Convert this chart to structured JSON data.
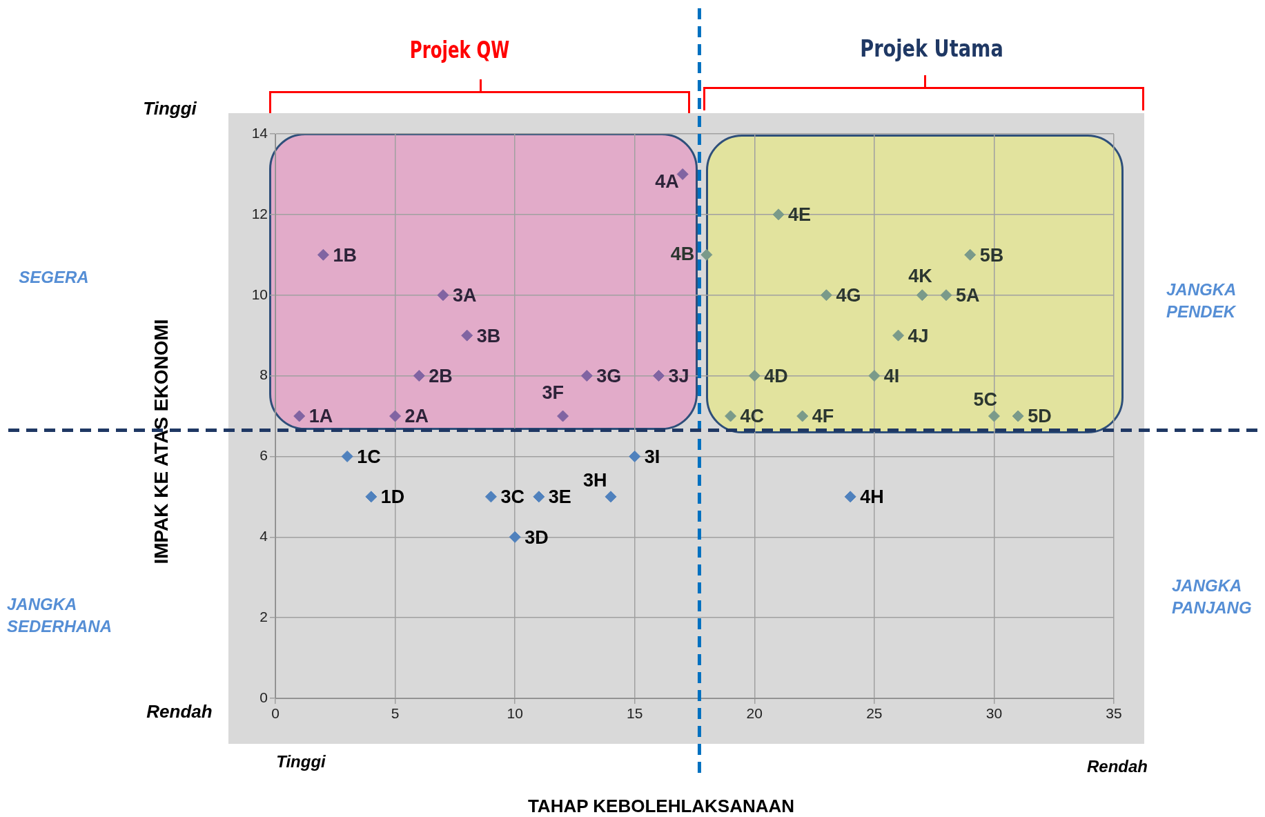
{
  "chart_data": {
    "type": "scatter",
    "xlabel": "TAHAP KEBOLEHLAKSANAAN",
    "ylabel": "IMPAK KE ATAS EKONOMI",
    "xlim": [
      0,
      35
    ],
    "xticks": [
      0,
      5,
      10,
      15,
      20,
      25,
      30,
      35
    ],
    "ylim": [
      0,
      14
    ],
    "yticks": [
      0,
      2,
      4,
      6,
      8,
      10,
      12,
      14
    ],
    "grid": true,
    "legend": false,
    "marker": "diamond",
    "series": [
      {
        "color": "#8064a2",
        "x": [
          1,
          2,
          5,
          6,
          7,
          8,
          12,
          13,
          16,
          17
        ],
        "values": [
          7,
          11,
          7,
          8,
          10,
          9,
          7,
          8,
          8,
          13
        ]
      },
      {
        "color": "#7a9a8a",
        "x": [
          18,
          19,
          20,
          21,
          22,
          23,
          25,
          26,
          27,
          28,
          29,
          30,
          31
        ],
        "values": [
          11,
          7,
          8,
          12,
          7,
          10,
          8,
          9,
          10,
          10,
          11,
          7,
          7
        ]
      },
      {
        "color": "#4f81bd",
        "x": [
          3,
          4,
          9,
          10,
          11,
          14,
          15,
          24
        ],
        "values": [
          6,
          5,
          5,
          4,
          5,
          5,
          6,
          5
        ]
      }
    ],
    "ref_lines": [
      {
        "axis": "x",
        "value": 17.7,
        "color": "#0070c0",
        "line_style": "dashed"
      },
      {
        "axis": "y",
        "value": 6.65,
        "color": "#1f3864",
        "line_style": "dashed"
      }
    ],
    "annotations": [
      "Projek QW",
      "Projek Utama",
      "Tinggi",
      "SEGERA",
      "JANGKA PENDEK",
      "JANGKA SEDERHANA",
      "JANGKA PANJANG",
      "Rendah",
      "Tinggi",
      "Rendah",
      {
        "text": "1A",
        "x": 1,
        "y": 7
      },
      {
        "text": "1B",
        "x": 2,
        "y": 11
      },
      {
        "text": "2A",
        "x": 5,
        "y": 7
      },
      {
        "text": "2B",
        "x": 6,
        "y": 8
      },
      {
        "text": "3A",
        "x": 7,
        "y": 10
      },
      {
        "text": "3B",
        "x": 8,
        "y": 9
      },
      {
        "text": "3F",
        "x": 12,
        "y": 7
      },
      {
        "text": "3G",
        "x": 13,
        "y": 8
      },
      {
        "text": "3J",
        "x": 16,
        "y": 8
      },
      {
        "text": "4A",
        "x": 17,
        "y": 13
      },
      {
        "text": "4B",
        "x": 18,
        "y": 11
      },
      {
        "text": "4C",
        "x": 19,
        "y": 7
      },
      {
        "text": "4D",
        "x": 20,
        "y": 8
      },
      {
        "text": "4E",
        "x": 21,
        "y": 12
      },
      {
        "text": "4F",
        "x": 22,
        "y": 7
      },
      {
        "text": "4G",
        "x": 23,
        "y": 10
      },
      {
        "text": "4I",
        "x": 25,
        "y": 8
      },
      {
        "text": "4J",
        "x": 26,
        "y": 9
      },
      {
        "text": "4K",
        "x": 27,
        "y": 10
      },
      {
        "text": "5A",
        "x": 28,
        "y": 10
      },
      {
        "text": "5B",
        "x": 29,
        "y": 11
      },
      {
        "text": "5C",
        "x": 30,
        "y": 7
      },
      {
        "text": "5D",
        "x": 31,
        "y": 7
      },
      {
        "text": "1C",
        "x": 3,
        "y": 6
      },
      {
        "text": "1D",
        "x": 4,
        "y": 5
      },
      {
        "text": "3C",
        "x": 9,
        "y": 5
      },
      {
        "text": "3D",
        "x": 10,
        "y": 4
      },
      {
        "text": "3E",
        "x": 11,
        "y": 5
      },
      {
        "text": "3H",
        "x": 14,
        "y": 5
      },
      {
        "text": "3I",
        "x": 15,
        "y": 6
      },
      {
        "text": "4H",
        "x": 24,
        "y": 5
      }
    ]
  }
}
